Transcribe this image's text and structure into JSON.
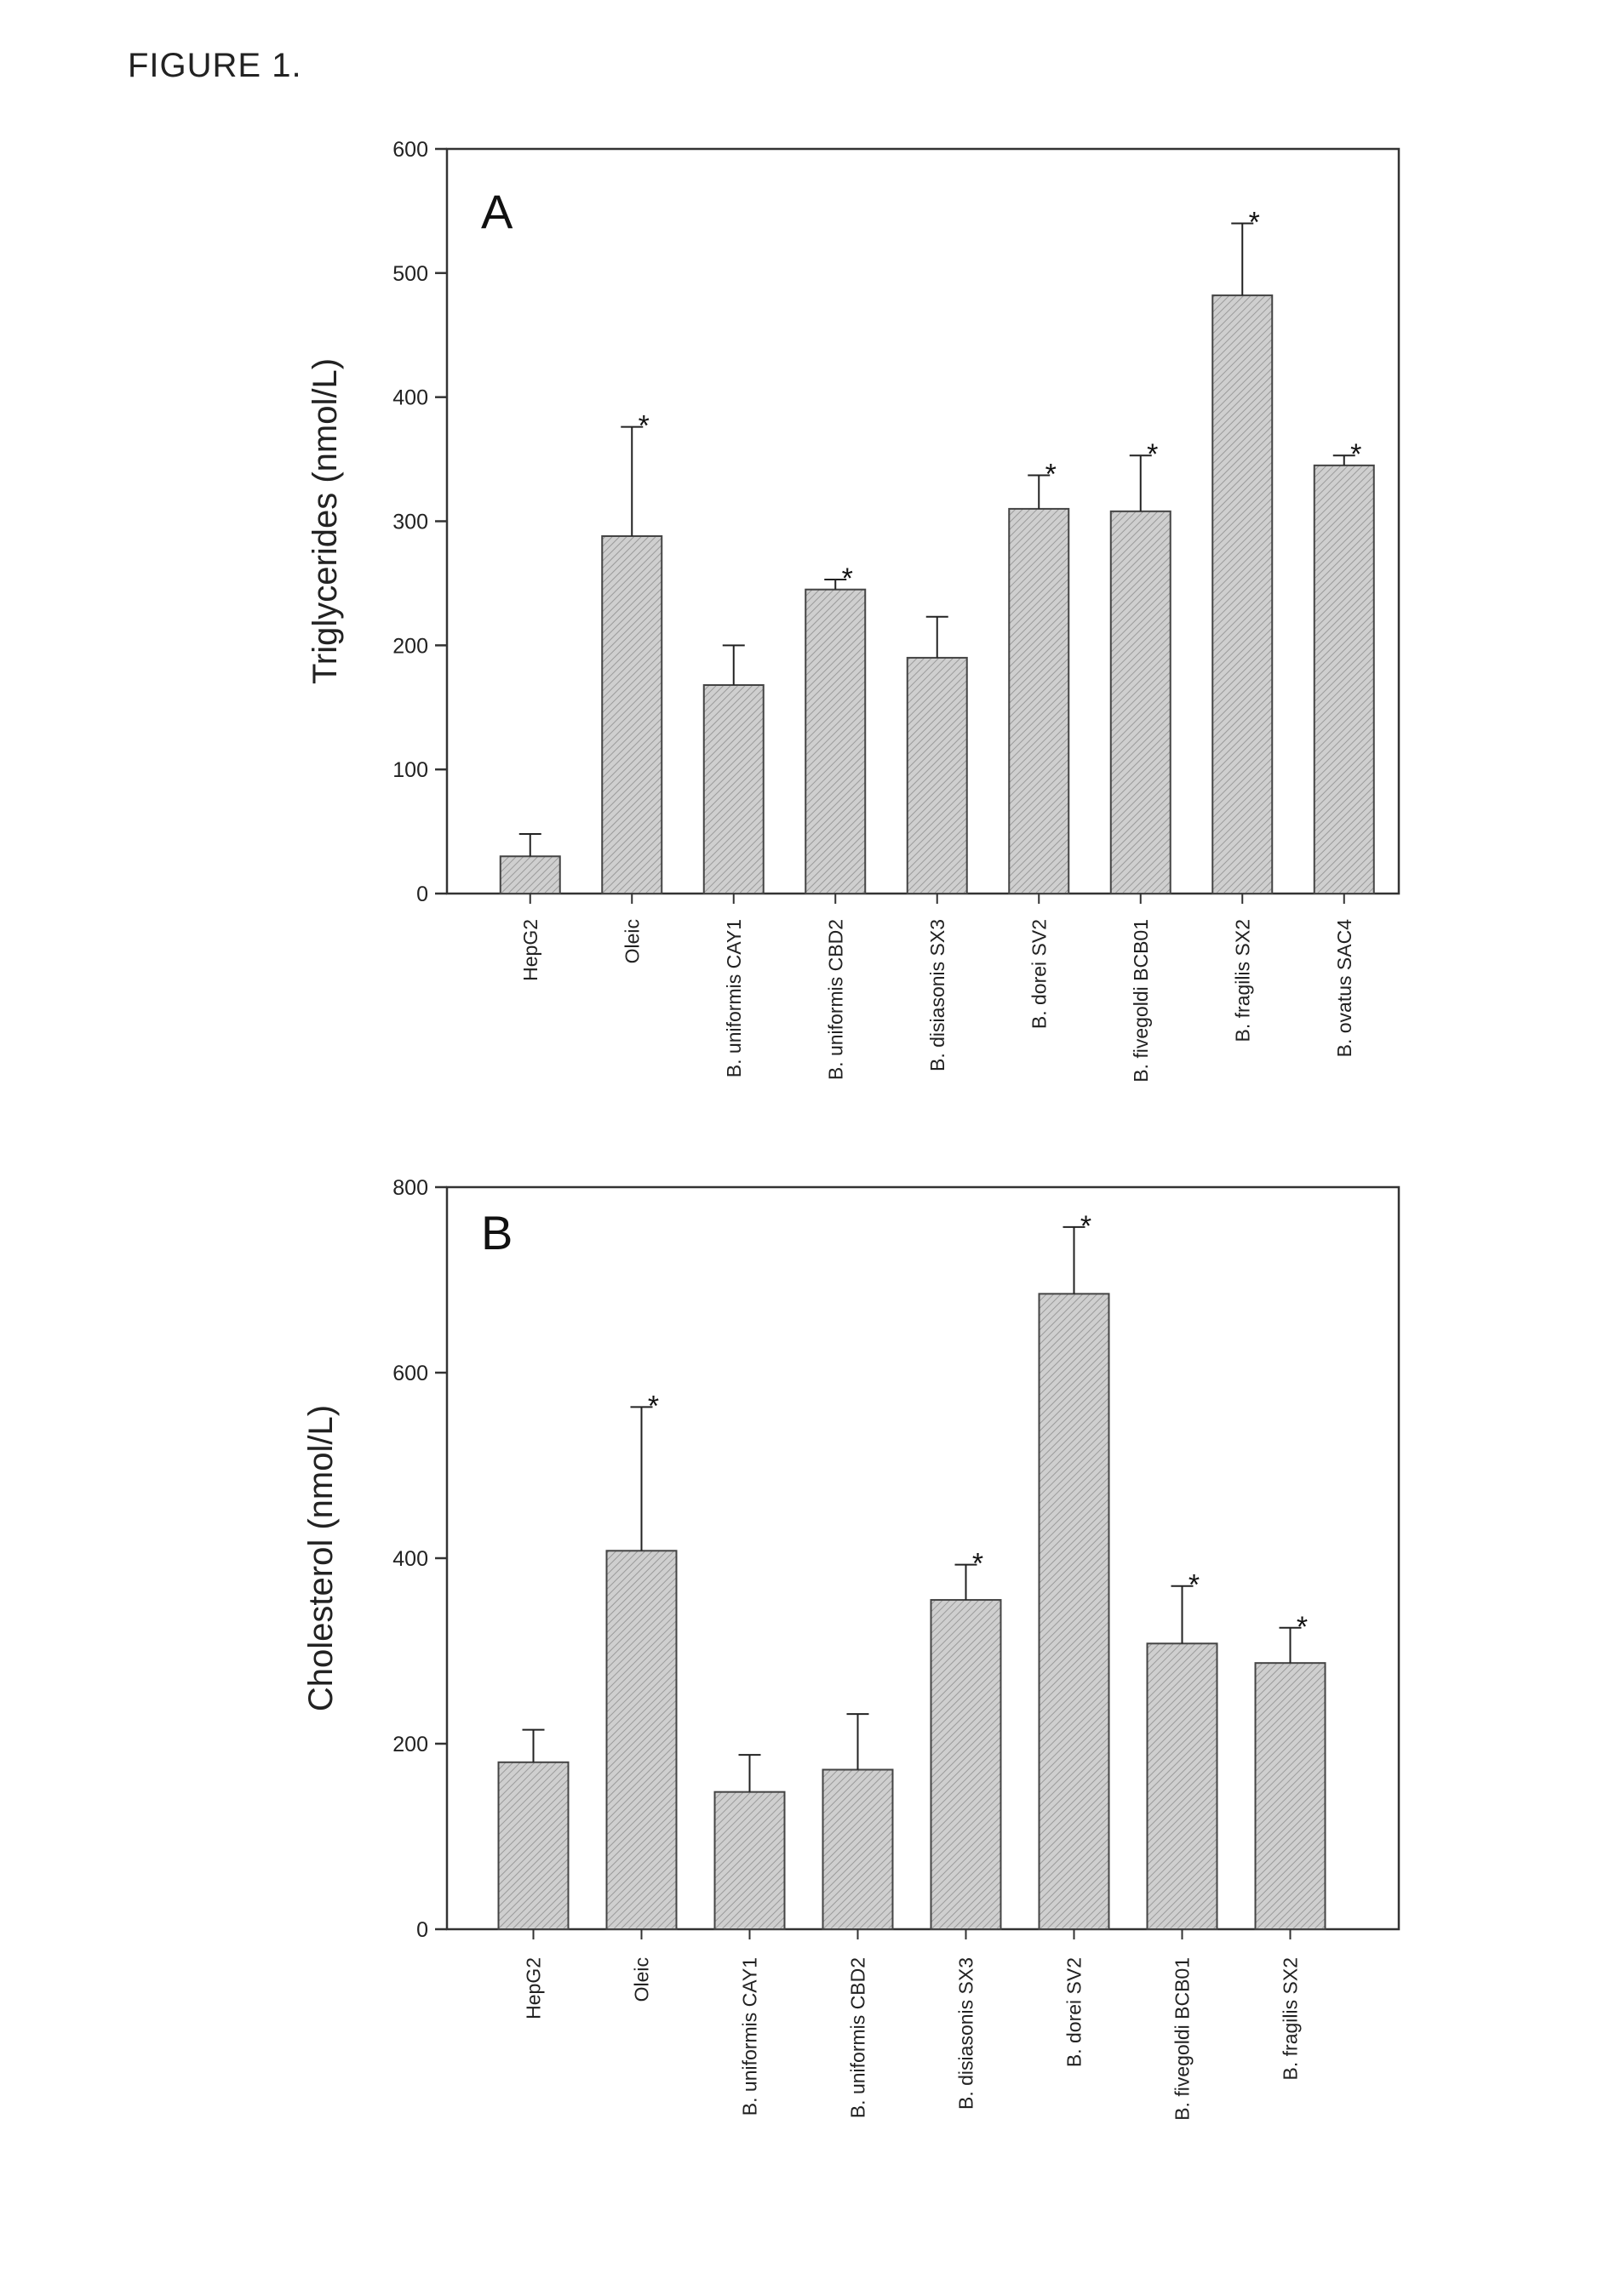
{
  "figure_title": "FIGURE 1.",
  "colors": {
    "bar_fill": "#c2c2c2",
    "bar_stroke": "#444444",
    "axis": "#333333"
  },
  "chart_data": [
    {
      "type": "bar",
      "panel_label": "A",
      "ylabel": "Triglycerides (nmol/L)",
      "ylim": [
        0,
        600
      ],
      "yticks": [
        0,
        100,
        200,
        300,
        400,
        500,
        600
      ],
      "categories": [
        "HepG2",
        "Oleic",
        "B. uniformis CAY1",
        "B. uniformis CBD2",
        "B. disiasonis SX3",
        "B. dorei SV2",
        "B. fivegoldi BCB01",
        "B. fragilis SX2",
        "B. ovatus SAC4"
      ],
      "values": [
        30,
        288,
        168,
        245,
        190,
        310,
        308,
        482,
        345
      ],
      "errors": [
        18,
        88,
        32,
        8,
        33,
        27,
        45,
        58,
        8
      ],
      "significance": [
        "",
        "*",
        "",
        "*",
        "",
        "*",
        "*",
        "*",
        "*"
      ],
      "grid": false
    },
    {
      "type": "bar",
      "panel_label": "B",
      "ylabel": "Cholesterol (nmol/L)",
      "ylim": [
        0,
        800
      ],
      "yticks": [
        0,
        200,
        400,
        600,
        800
      ],
      "categories": [
        "HepG2",
        "Oleic",
        "B. uniformis CAY1",
        "B. uniformis CBD2",
        "B. disiasonis SX3",
        "B. dorei SV2",
        "B. fivegoldi BCB01",
        "B. fragilis SX2"
      ],
      "values": [
        180,
        408,
        148,
        172,
        355,
        685,
        308,
        287
      ],
      "errors": [
        35,
        155,
        40,
        60,
        38,
        72,
        62,
        38
      ],
      "significance": [
        "",
        "*",
        "",
        "",
        "*",
        "*",
        "*",
        "*"
      ],
      "grid": false
    }
  ]
}
